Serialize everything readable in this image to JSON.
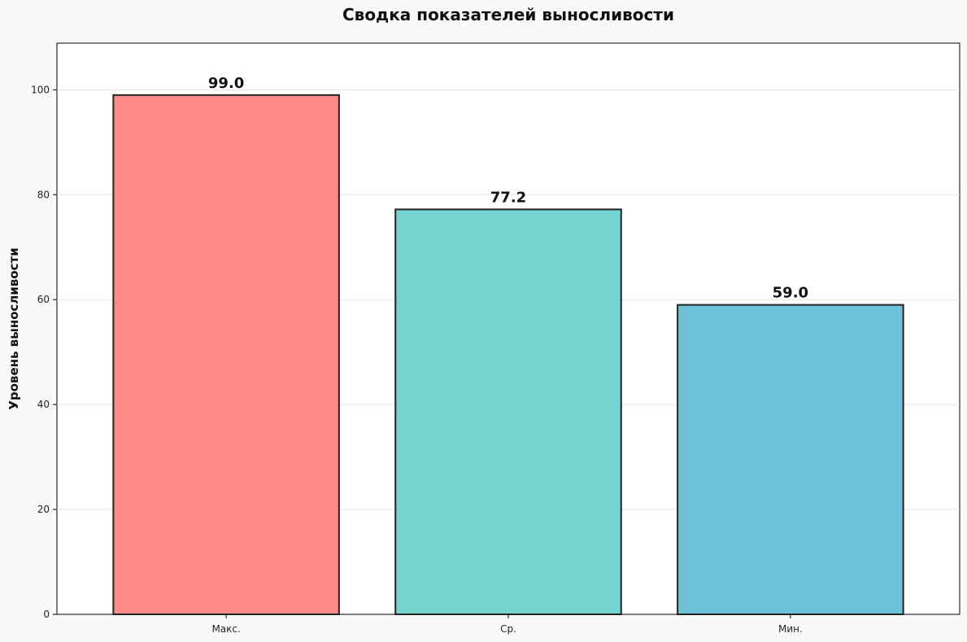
{
  "chart_data": {
    "type": "bar",
    "title": "Сводка показателей выносливости",
    "xlabel": "",
    "ylabel": "Уровень выносливости",
    "categories": [
      "Макс.",
      "Ср.",
      "Мин."
    ],
    "values": [
      99.0,
      77.2,
      59.0
    ],
    "value_labels": [
      "99.0",
      "77.2",
      "59.0"
    ],
    "colors": [
      "#ff8a8a",
      "#74d5d0",
      "#6bc2d9"
    ],
    "ylim": [
      0,
      108.9
    ],
    "yticks": [
      0,
      20,
      40,
      60,
      80,
      100
    ],
    "grid": true,
    "legend": "none"
  }
}
